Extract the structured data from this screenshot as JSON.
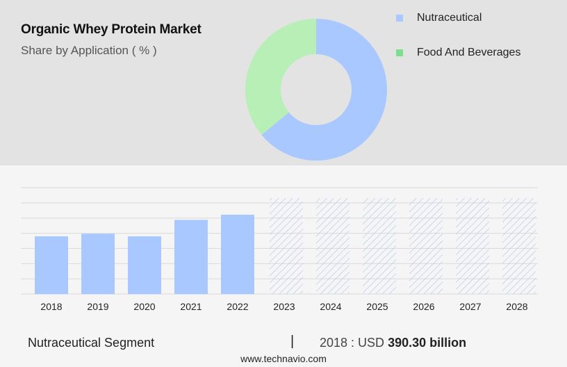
{
  "header": {
    "title": "Organic Whey Protein Market",
    "subtitle": "Share by Application ( % )"
  },
  "colors": {
    "nutraceutical": "#a8c8ff",
    "food_and_beverages": "#b7efb7",
    "legend_food_and_beverages": "#7ddf8e",
    "hatch": "#b8c8ee",
    "grid": "#d9d9d9"
  },
  "chart_data": [
    {
      "type": "pie",
      "title": "Share by Application ( % )",
      "donut": true,
      "series": [
        {
          "name": "Nutraceutical",
          "value": 64
        },
        {
          "name": "Food And Beverages",
          "value": 36
        }
      ],
      "legend_position": "top-right"
    },
    {
      "type": "bar",
      "categories": [
        "2018",
        "2019",
        "2020",
        "2021",
        "2022",
        "2023",
        "2024",
        "2025",
        "2026",
        "2027",
        "2028"
      ],
      "values": [
        390.3,
        408,
        390.3,
        502,
        537,
        null,
        null,
        null,
        null,
        null,
        null
      ],
      "forecast_categories": [
        "2023",
        "2024",
        "2025",
        "2026",
        "2027",
        "2028"
      ],
      "ylim": [
        0,
        720
      ],
      "grid": true
    }
  ],
  "footer": {
    "segment": "Nutraceutical Segment",
    "divider": "|",
    "year_label": "2018 : USD",
    "value": "390.30 billion"
  },
  "watermark": "www.technavio.com"
}
